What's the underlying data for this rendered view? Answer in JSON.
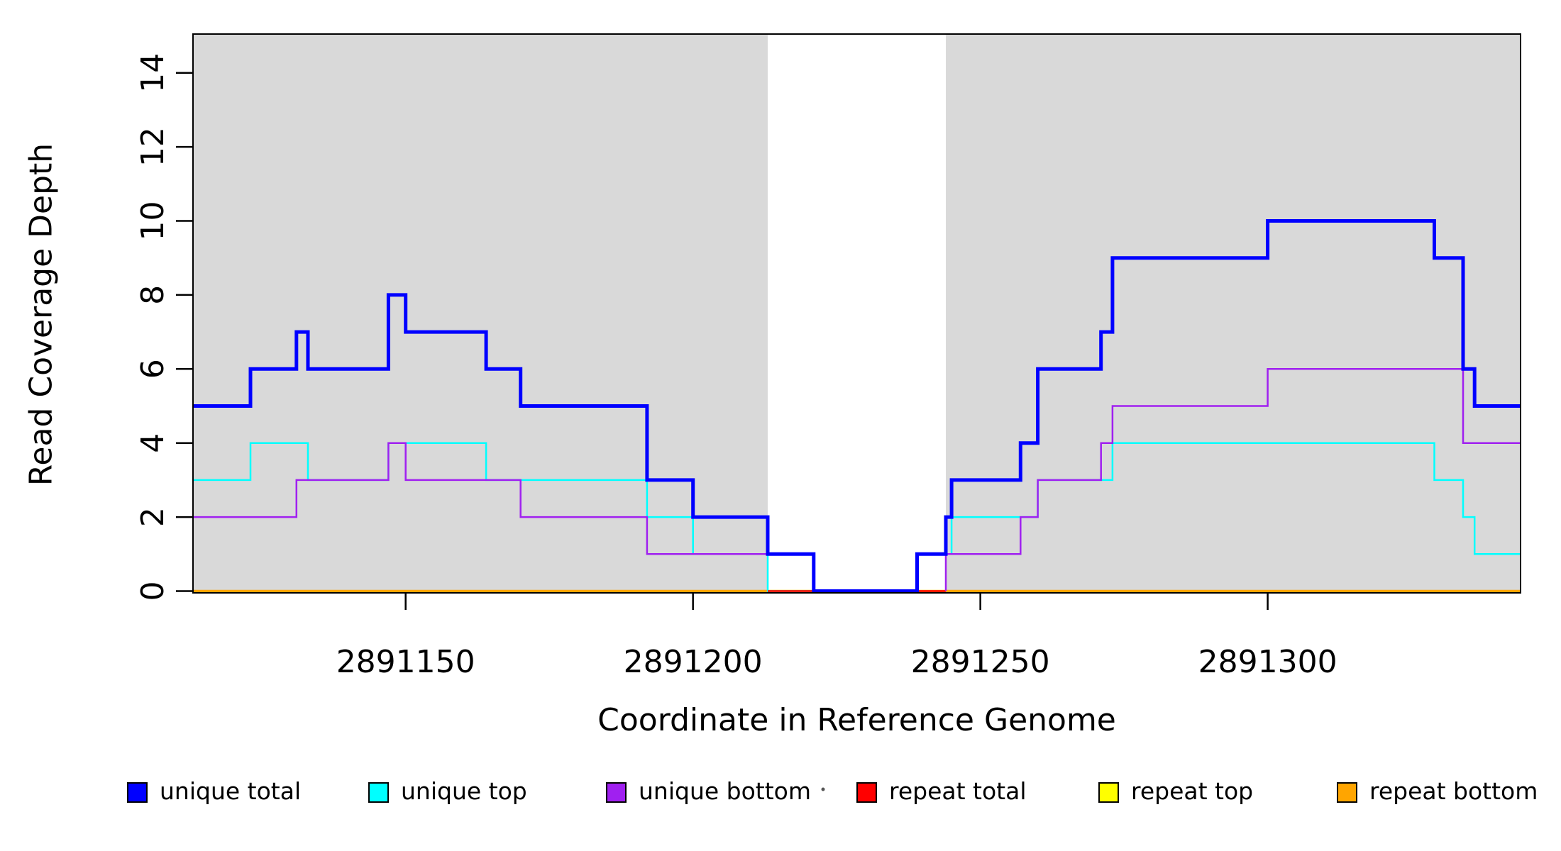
{
  "figure": {
    "x_label": "Coordinate in Reference Genome",
    "y_label": "Read Coverage Depth"
  },
  "chart_data": {
    "type": "line",
    "subtype": "step-coverage",
    "title": "",
    "xlabel": "Coordinate in Reference Genome",
    "ylabel": "Read Coverage Depth",
    "xlim": [
      2891113,
      2891344
    ],
    "ylim": [
      0,
      15.05
    ],
    "x_ticks": [
      2891150,
      2891200,
      2891250,
      2891300
    ],
    "y_ticks": [
      0,
      2,
      4,
      6,
      8,
      10,
      12,
      14
    ],
    "grid": false,
    "background_color": "#ffffff",
    "shaded_regions": [
      {
        "name": "annotated-region-left",
        "x0": 2891113,
        "x1": 2891213,
        "color": "#d9d9d9"
      },
      {
        "name": "annotated-region-right",
        "x0": 2891244,
        "x1": 2891344,
        "color": "#d9d9d9"
      }
    ],
    "series": [
      {
        "name": "repeat top",
        "key": "repeat-top",
        "color": "#ffff00",
        "lw": 2.5,
        "segments": [
          [
            [
              2891113,
              0
            ],
            [
              2891344,
              0
            ]
          ]
        ]
      },
      {
        "name": "repeat bottom",
        "key": "repeat-bottom",
        "color": "#ffa500",
        "lw": 3.5,
        "segments": [
          [
            [
              2891113,
              0
            ],
            [
              2891344,
              0
            ]
          ]
        ]
      },
      {
        "name": "unique top",
        "key": "unique-top",
        "color": "#00ffff",
        "lw": 2.5,
        "segments": [
          [
            [
              2891113,
              3
            ],
            [
              2891123,
              4
            ],
            [
              2891133,
              3
            ],
            [
              2891147,
              4
            ],
            [
              2891164,
              3
            ],
            [
              2891192,
              2
            ],
            [
              2891200,
              1
            ],
            [
              2891213,
              0
            ],
            [
              2891239,
              1
            ],
            [
              2891245,
              2
            ],
            [
              2891260,
              3
            ],
            [
              2891273,
              4
            ],
            [
              2891329,
              3
            ],
            [
              2891334,
              2
            ],
            [
              2891336,
              1
            ],
            [
              2891344,
              1
            ]
          ]
        ]
      },
      {
        "name": "repeat total",
        "key": "repeat-total",
        "color": "#ff0000",
        "lw": 2.5,
        "segments": [
          [
            [
              2891213,
              0
            ],
            [
              2891244,
              0
            ]
          ]
        ]
      },
      {
        "name": "unique bottom",
        "key": "unique-bottom",
        "color": "#a020f0",
        "lw": 2.5,
        "segments": [
          [
            [
              2891113,
              2
            ],
            [
              2891131,
              3
            ],
            [
              2891147,
              4
            ],
            [
              2891150,
              3
            ],
            [
              2891170,
              2
            ],
            [
              2891192,
              1
            ],
            [
              2891221,
              0
            ],
            [
              2891239,
              0
            ]
          ],
          [
            [
              2891244,
              0
            ],
            [
              2891244,
              1
            ],
            [
              2891257,
              2
            ],
            [
              2891260,
              3
            ],
            [
              2891271,
              4
            ],
            [
              2891273,
              5
            ],
            [
              2891300,
              6
            ],
            [
              2891334,
              4
            ],
            [
              2891344,
              4
            ]
          ]
        ]
      },
      {
        "name": "unique total",
        "key": "unique-total",
        "color": "#0000ff",
        "lw": 5,
        "segments": [
          [
            [
              2891113,
              5
            ],
            [
              2891123,
              6
            ],
            [
              2891131,
              7
            ],
            [
              2891133,
              6
            ],
            [
              2891147,
              8
            ],
            [
              2891150,
              7
            ],
            [
              2891164,
              6
            ],
            [
              2891170,
              5
            ],
            [
              2891192,
              3
            ],
            [
              2891200,
              2
            ],
            [
              2891213,
              1
            ],
            [
              2891221,
              0
            ],
            [
              2891239,
              1
            ],
            [
              2891244,
              2
            ],
            [
              2891245,
              3
            ],
            [
              2891257,
              4
            ],
            [
              2891260,
              6
            ],
            [
              2891271,
              7
            ],
            [
              2891273,
              9
            ],
            [
              2891300,
              10
            ],
            [
              2891329,
              9
            ],
            [
              2891334,
              6
            ],
            [
              2891336,
              5
            ],
            [
              2891344,
              5
            ]
          ]
        ]
      }
    ],
    "legend": {
      "position": "bottom",
      "entries": [
        {
          "label": "unique total",
          "color": "#0000ff"
        },
        {
          "label": "unique top",
          "color": "#00ffff"
        },
        {
          "label": "unique bottom",
          "color": "#a020f0"
        },
        {
          "label": "repeat total",
          "color": "#ff0000"
        },
        {
          "label": "repeat top",
          "color": "#ffff00"
        },
        {
          "label": "repeat bottom",
          "color": "#ffa500"
        }
      ]
    }
  }
}
